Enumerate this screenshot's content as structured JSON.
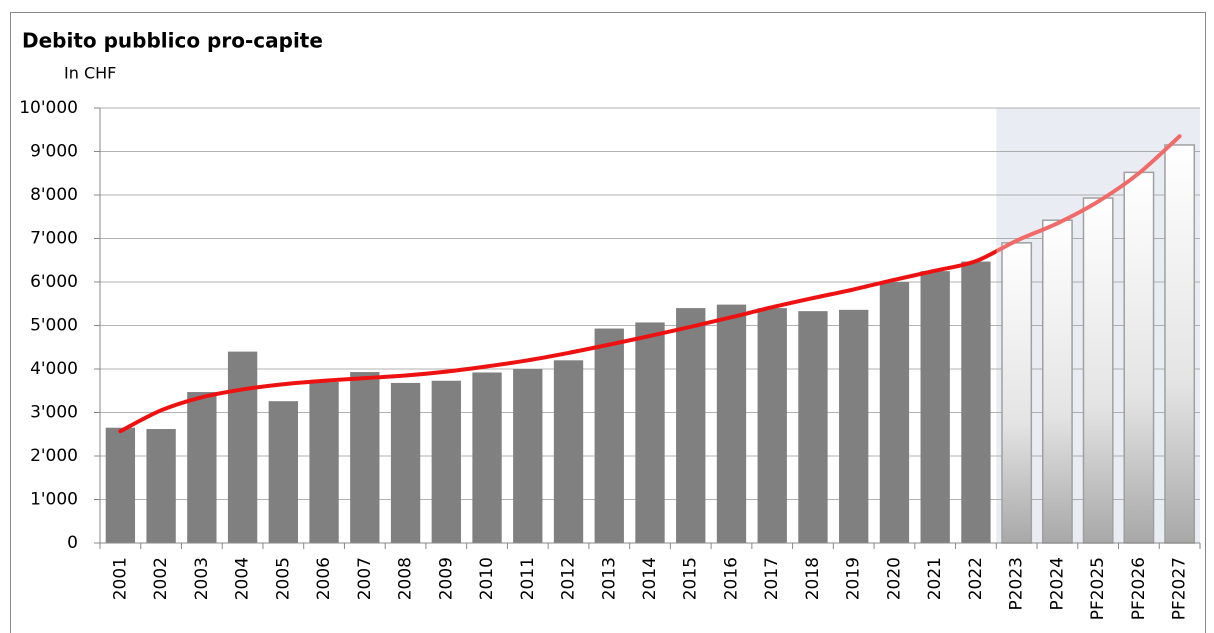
{
  "chart_data": {
    "type": "bar",
    "title": "Debito pubblico pro-capite",
    "subtitle": "In CHF",
    "categories": [
      "2001",
      "2002",
      "2003",
      "2004",
      "2005",
      "2006",
      "2007",
      "2008",
      "2009",
      "2010",
      "2011",
      "2012",
      "2013",
      "2014",
      "2015",
      "2016",
      "2017",
      "2018",
      "2019",
      "2020",
      "2021",
      "2022",
      "P2023",
      "P2024",
      "PF2025",
      "PF2026",
      "PF2027"
    ],
    "values": [
      2650,
      2620,
      3470,
      4400,
      3260,
      3700,
      3930,
      3680,
      3730,
      3920,
      4000,
      4200,
      4930,
      5070,
      5400,
      5480,
      5400,
      5330,
      5360,
      6000,
      6250,
      6470,
      6900,
      7420,
      7930,
      8520,
      9150
    ],
    "forecast": [
      false,
      false,
      false,
      false,
      false,
      false,
      false,
      false,
      false,
      false,
      false,
      false,
      false,
      false,
      false,
      false,
      false,
      false,
      false,
      false,
      false,
      false,
      true,
      true,
      true,
      true,
      true
    ],
    "trend_values": [
      2570,
      3050,
      3350,
      3530,
      3650,
      3730,
      3790,
      3850,
      3940,
      4060,
      4200,
      4370,
      4560,
      4760,
      4970,
      5190,
      5420,
      5630,
      5830,
      6050,
      6260,
      6480,
      6950,
      7350,
      7850,
      8500,
      9350
    ],
    "color": "#808080",
    "forecast_color": "#ffffff",
    "forecast_band_color": "#e9edf3",
    "trend_color": "#ee1111",
    "forecast_trend_color": "#f06a6a",
    "ylim": [
      0,
      10000
    ],
    "yticks": [
      0,
      {
        "value": 1000,
        "label": "1'000"
      },
      {
        "value": 2000,
        "label": "2'000"
      },
      {
        "value": 3000,
        "label": "3'000"
      },
      {
        "value": 4000,
        "label": "4'000"
      },
      {
        "value": 5000,
        "label": "5'000"
      },
      {
        "value": 6000,
        "label": "6'000"
      },
      {
        "value": 7000,
        "label": "7'000"
      },
      {
        "value": 8000,
        "label": "8'000"
      },
      {
        "value": 9000,
        "label": "9'000"
      },
      {
        "value": 10000,
        "label": "10'000"
      }
    ],
    "grid": true
  }
}
